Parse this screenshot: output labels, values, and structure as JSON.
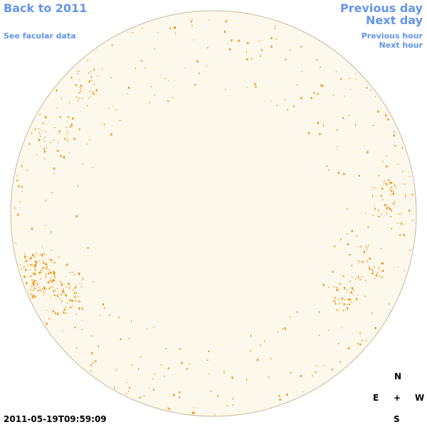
{
  "nav": {
    "back": "Back to 2011",
    "facular_data": "See facular data",
    "previous_day": "Previous day",
    "next_day": "Next day",
    "previous_hour": "Previous hour",
    "next_hour": "Next hour"
  },
  "compass": {
    "north": "N",
    "east": "E",
    "center": "+",
    "west": "W",
    "south": "S"
  },
  "timestamp": "2011-05-19T09:59:09"
}
